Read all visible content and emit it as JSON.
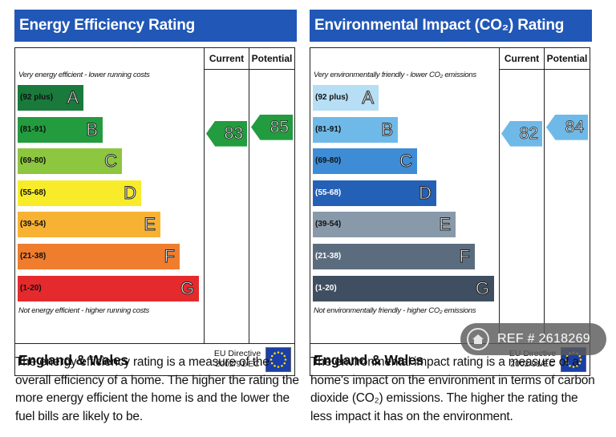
{
  "energy_efficiency": {
    "title": "Energy Efficiency Rating",
    "col_current": "Current",
    "col_potential": "Potential",
    "caption_top": "Very energy efficient - lower running costs",
    "caption_bottom": "Not energy efficient - higher running costs",
    "bands": [
      {
        "range": "(92 plus)",
        "letter": "A",
        "color": "#1a7a3c"
      },
      {
        "range": "(81-91)",
        "letter": "B",
        "color": "#239b3f"
      },
      {
        "range": "(69-80)",
        "letter": "C",
        "color": "#8dc63f"
      },
      {
        "range": "(55-68)",
        "letter": "D",
        "color": "#f8ec2a"
      },
      {
        "range": "(39-54)",
        "letter": "E",
        "color": "#f7b233"
      },
      {
        "range": "(21-38)",
        "letter": "F",
        "color": "#ef7d2d"
      },
      {
        "range": "(1-20)",
        "letter": "G",
        "color": "#e52a2d"
      }
    ],
    "current": {
      "value": "83",
      "band": "B",
      "color": "#239b3f"
    },
    "potential": {
      "value": "85",
      "band": "B",
      "color": "#239b3f"
    },
    "footer_region": "England & Wales",
    "footer_directive_line1": "EU Directive",
    "footer_directive_line2": "2002/91/EC",
    "description": "The energy efficiency rating is a measure of the overall efficiency of a home. The higher the rating the more energy efficient the home is and the lower the fuel bills are likely to be."
  },
  "environmental_impact": {
    "title": "Environmental Impact (CO₂) Rating",
    "col_current": "Current",
    "col_potential": "Potential",
    "caption_top": "Very environmentally friendly - lower CO₂ emissions",
    "caption_bottom": "Not environmentally friendly - higher CO₂ emissions",
    "bands": [
      {
        "range": "(92 plus)",
        "letter": "A",
        "color": "#b6def4"
      },
      {
        "range": "(81-91)",
        "letter": "B",
        "color": "#6fb9e8"
      },
      {
        "range": "(69-80)",
        "letter": "C",
        "color": "#3e8cd6"
      },
      {
        "range": "(55-68)",
        "letter": "D",
        "color": "#2461b6"
      },
      {
        "range": "(39-54)",
        "letter": "E",
        "color": "#8899aa"
      },
      {
        "range": "(21-38)",
        "letter": "F",
        "color": "#5b6c7e"
      },
      {
        "range": "(1-20)",
        "letter": "G",
        "color": "#3f4f61"
      }
    ],
    "current": {
      "value": "82",
      "band": "B",
      "color": "#6fb9e8"
    },
    "potential": {
      "value": "84",
      "band": "B",
      "color": "#6fb9e8"
    },
    "footer_region": "England & Wales",
    "footer_directive_line1": "EU Directive",
    "footer_directive_line2": "2002/91/EC",
    "description": "The environmental impact rating is a measure of a home's impact on the environment in terms of carbon dioxide (CO₂) emissions. The higher the rating the less impact it has on the environment."
  },
  "ref_badge": {
    "text": "REF # 2618269"
  }
}
